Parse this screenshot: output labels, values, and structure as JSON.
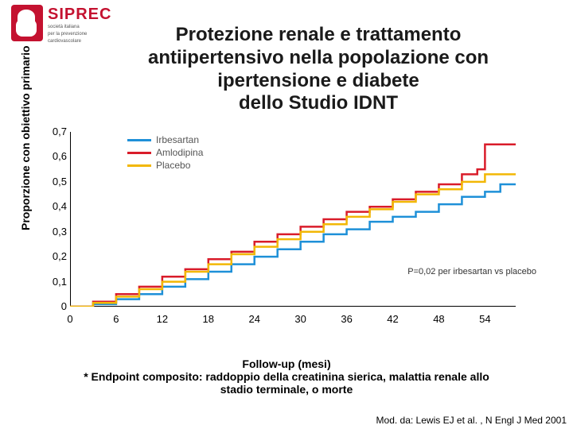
{
  "logo": {
    "brand": "SIPREC",
    "sub1": "società italiana",
    "sub2": "per la prevenzione",
    "sub3": "cardiovascolare",
    "brand_color": "#c41230"
  },
  "title": {
    "l1": "Protezione renale e trattamento",
    "l2": "antiipertensivo nella popolazione con",
    "l3": "ipertensione e diabete",
    "l4": "dello Studio IDNT",
    "fontsize": 24
  },
  "chart": {
    "type": "line-step",
    "xlabel": "Follow-up (mesi)",
    "ylabel": "Proporzione con obiettivo primario",
    "xlim": [
      0,
      58
    ],
    "ylim": [
      0,
      0.7
    ],
    "xticks": [
      0,
      6,
      12,
      18,
      24,
      30,
      36,
      42,
      48,
      54
    ],
    "yticks": [
      0,
      0.1,
      0.2,
      0.3,
      0.4,
      0.5,
      0.6,
      0.7
    ],
    "axis_color": "#000000",
    "axis_width": 2,
    "background_color": "#ffffff",
    "label_fontsize": 14,
    "tick_fontsize": 13,
    "line_width": 2.5,
    "series": [
      {
        "name": "Irbesartan",
        "color": "#1e90d8",
        "x": [
          0,
          3,
          6,
          9,
          12,
          15,
          18,
          21,
          24,
          27,
          30,
          33,
          36,
          39,
          42,
          45,
          48,
          51,
          54,
          56,
          58
        ],
        "y": [
          0,
          0.01,
          0.03,
          0.05,
          0.08,
          0.11,
          0.14,
          0.17,
          0.2,
          0.23,
          0.26,
          0.29,
          0.31,
          0.34,
          0.36,
          0.38,
          0.41,
          0.44,
          0.46,
          0.49,
          0.49
        ]
      },
      {
        "name": "Amlodipina",
        "color": "#d91c2a",
        "x": [
          0,
          3,
          6,
          9,
          12,
          15,
          18,
          21,
          24,
          27,
          30,
          33,
          36,
          39,
          42,
          45,
          48,
          51,
          53,
          54,
          55,
          58
        ],
        "y": [
          0,
          0.02,
          0.05,
          0.08,
          0.12,
          0.15,
          0.19,
          0.22,
          0.26,
          0.29,
          0.32,
          0.35,
          0.38,
          0.4,
          0.43,
          0.46,
          0.49,
          0.53,
          0.55,
          0.65,
          0.65,
          0.65
        ]
      },
      {
        "name": "Placebo",
        "color": "#f2b705",
        "x": [
          0,
          3,
          6,
          9,
          12,
          15,
          18,
          21,
          24,
          27,
          30,
          33,
          36,
          39,
          42,
          45,
          48,
          51,
          54,
          58
        ],
        "y": [
          0,
          0.015,
          0.04,
          0.07,
          0.1,
          0.14,
          0.17,
          0.21,
          0.24,
          0.27,
          0.3,
          0.33,
          0.36,
          0.39,
          0.42,
          0.45,
          0.47,
          0.5,
          0.53,
          0.53
        ]
      }
    ],
    "pvalue_text": "P=0,02 per irbesartan vs placebo"
  },
  "footnote": {
    "line1a": "* Endpoint composito: raddoppio della creatinina sierica, malattia renale allo",
    "line1b": "stadio terminale, o morte"
  },
  "citation": "Mod. da: Lewis EJ et al. , N Engl J Med 2001"
}
